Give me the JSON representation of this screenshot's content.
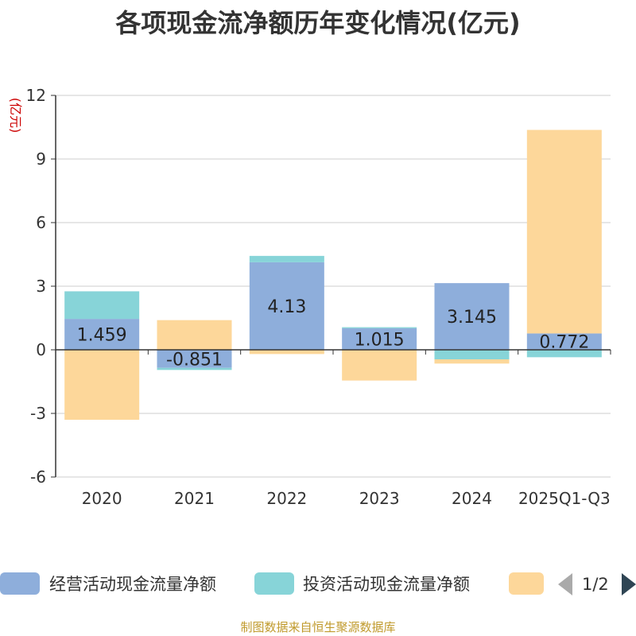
{
  "chart_data": {
    "type": "bar",
    "stacked": true,
    "title": "各项现金流净额历年变化情况(亿元)",
    "ylabel": "(亿元)",
    "ylim": [
      -6,
      12
    ],
    "yticks": [
      -6,
      -3,
      0,
      3,
      6,
      9,
      12
    ],
    "categories": [
      "2020",
      "2021",
      "2022",
      "2023",
      "2024",
      "2025Q1-Q3"
    ],
    "series": [
      {
        "name": "经营活动现金流量净额",
        "color": "#8eaedb",
        "values": [
          1.459,
          -0.851,
          4.13,
          1.015,
          3.145,
          0.772
        ],
        "show_labels": true
      },
      {
        "name": "投资活动现金流量净额",
        "color": "#87d4d8",
        "values": [
          1.3,
          -0.1,
          0.3,
          0.05,
          -0.45,
          -0.35
        ],
        "show_labels": false
      },
      {
        "name": "",
        "color": "#fdd79a",
        "values": [
          -3.3,
          1.4,
          -0.2,
          -1.45,
          -0.2,
          9.6
        ],
        "show_labels": false
      }
    ],
    "data_labels": [
      "1.459",
      "-0.851",
      "4.13",
      "1.015",
      "3.145",
      "0.772"
    ],
    "legend": {
      "position": "bottom",
      "page": "1/2"
    }
  },
  "source": "制图数据来自恒生聚源数据库"
}
